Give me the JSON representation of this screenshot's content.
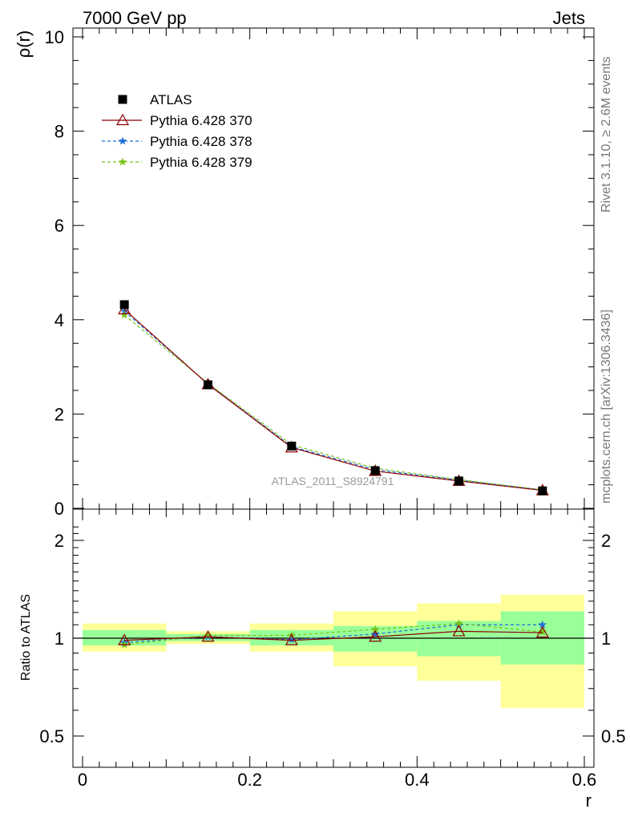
{
  "header": {
    "left": "7000 GeV pp",
    "right": "Jets"
  },
  "side_labels": {
    "top": "Rivet 3.1.10, ≥ 2.6M events",
    "bottom": "mcplots.cern.ch [arXiv:1306.3436]"
  },
  "watermark": "ATLAS_2011_S8924791",
  "chart_data": [
    {
      "type": "line",
      "panel": "main",
      "ylabel": "ρ(r)",
      "xlim": [
        0,
        0.6
      ],
      "ylim": [
        0,
        10
      ],
      "yticks": [
        "0",
        "2",
        "4",
        "6",
        "8",
        "10"
      ],
      "legend_placement": "top-left",
      "x": [
        0.05,
        0.15,
        0.25,
        0.35,
        0.45,
        0.55
      ],
      "series": [
        {
          "name": "ATLAS",
          "color": "#000000",
          "marker": "square",
          "values": [
            4.32,
            2.62,
            1.32,
            0.8,
            0.58,
            0.37
          ]
        },
        {
          "name": "Pythia 6.428 370",
          "color": "#8b0000",
          "marker": "open-triangle",
          "line": "solid",
          "values": [
            4.22,
            2.63,
            1.29,
            0.79,
            0.58,
            0.38
          ]
        },
        {
          "name": "Pythia 6.428 378",
          "color": "#1e6fd9",
          "marker": "star",
          "line": "dashed",
          "values": [
            4.18,
            2.64,
            1.31,
            0.82,
            0.6,
            0.39
          ]
        },
        {
          "name": "Pythia 6.428 379",
          "color": "#77c31a",
          "marker": "star",
          "line": "dashed",
          "values": [
            4.1,
            2.65,
            1.35,
            0.85,
            0.61,
            0.39
          ]
        }
      ]
    },
    {
      "type": "line",
      "panel": "ratio",
      "xlabel": "r",
      "ylabel": "Ratio to ATLAS",
      "xlim": [
        0,
        0.6
      ],
      "ylim": [
        0.4,
        2.3
      ],
      "xticks": [
        "0",
        "0.2",
        "0.4",
        "0.6"
      ],
      "yticks": [
        "0.5",
        "1",
        "2"
      ],
      "x": [
        0.05,
        0.15,
        0.25,
        0.35,
        0.45,
        0.55
      ],
      "bins": [
        [
          0,
          0.1
        ],
        [
          0.1,
          0.2
        ],
        [
          0.2,
          0.3
        ],
        [
          0.3,
          0.4
        ],
        [
          0.4,
          0.5
        ],
        [
          0.5,
          0.6
        ]
      ],
      "band_inner": [
        [
          0.95,
          1.06
        ],
        [
          0.98,
          1.03
        ],
        [
          0.95,
          1.06
        ],
        [
          0.91,
          1.09
        ],
        [
          0.88,
          1.13
        ],
        [
          0.83,
          1.21
        ]
      ],
      "band_outer": [
        [
          0.91,
          1.11
        ],
        [
          0.96,
          1.05
        ],
        [
          0.91,
          1.11
        ],
        [
          0.82,
          1.21
        ],
        [
          0.74,
          1.28
        ],
        [
          0.61,
          1.36
        ]
      ],
      "band_colors": {
        "inner": "#99ff99",
        "outer": "#ffff99"
      },
      "series": [
        {
          "name": "Pythia 6.428 370",
          "color": "#8b0000",
          "values": [
            0.985,
            1.01,
            0.985,
            1.01,
            1.05,
            1.04
          ]
        },
        {
          "name": "Pythia 6.428 378",
          "color": "#1e6fd9",
          "values": [
            0.97,
            1.01,
            0.99,
            1.03,
            1.1,
            1.1
          ]
        },
        {
          "name": "Pythia 6.428 379",
          "color": "#77c31a",
          "values": [
            0.955,
            1.02,
            1.02,
            1.065,
            1.11,
            1.045
          ]
        }
      ]
    }
  ]
}
